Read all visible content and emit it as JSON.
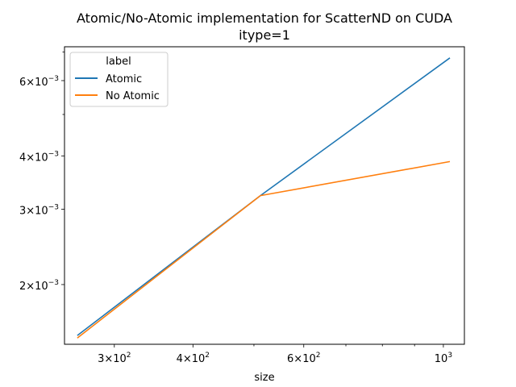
{
  "chart_data": {
    "type": "line",
    "title": "Atomic/No-Atomic implementation for ScatterND on CUDA",
    "subtitle": "itype=1",
    "xlabel": "size",
    "ylabel": "",
    "xscale": "log",
    "yscale": "log",
    "xlim": [
      250,
      1080
    ],
    "ylim": [
      0.00145,
      0.0072
    ],
    "x_ticks": [
      {
        "value": 300,
        "mantissa": "3",
        "exponent": "2"
      },
      {
        "value": 400,
        "mantissa": "4",
        "exponent": "2"
      },
      {
        "value": 600,
        "mantissa": "6",
        "exponent": "2"
      },
      {
        "value": 1000,
        "mantissa": "",
        "exponent": "3"
      }
    ],
    "y_ticks": [
      {
        "value": 0.002,
        "mantissa": "2",
        "exponent": "−3"
      },
      {
        "value": 0.003,
        "mantissa": "3",
        "exponent": "−3"
      },
      {
        "value": 0.004,
        "mantissa": "4",
        "exponent": "−3"
      },
      {
        "value": 0.006,
        "mantissa": "6",
        "exponent": "−3"
      }
    ],
    "legend": {
      "title": "label",
      "position": "top-left"
    },
    "series": [
      {
        "name": "Atomic",
        "color": "#1f77b4",
        "x": [
          262,
          512,
          1024
        ],
        "y": [
          0.00152,
          0.00323,
          0.00678
        ]
      },
      {
        "name": "No Atomic",
        "color": "#ff7f0e",
        "x": [
          262,
          512,
          1024
        ],
        "y": [
          0.0015,
          0.00323,
          0.00388
        ]
      }
    ],
    "grid": false
  }
}
